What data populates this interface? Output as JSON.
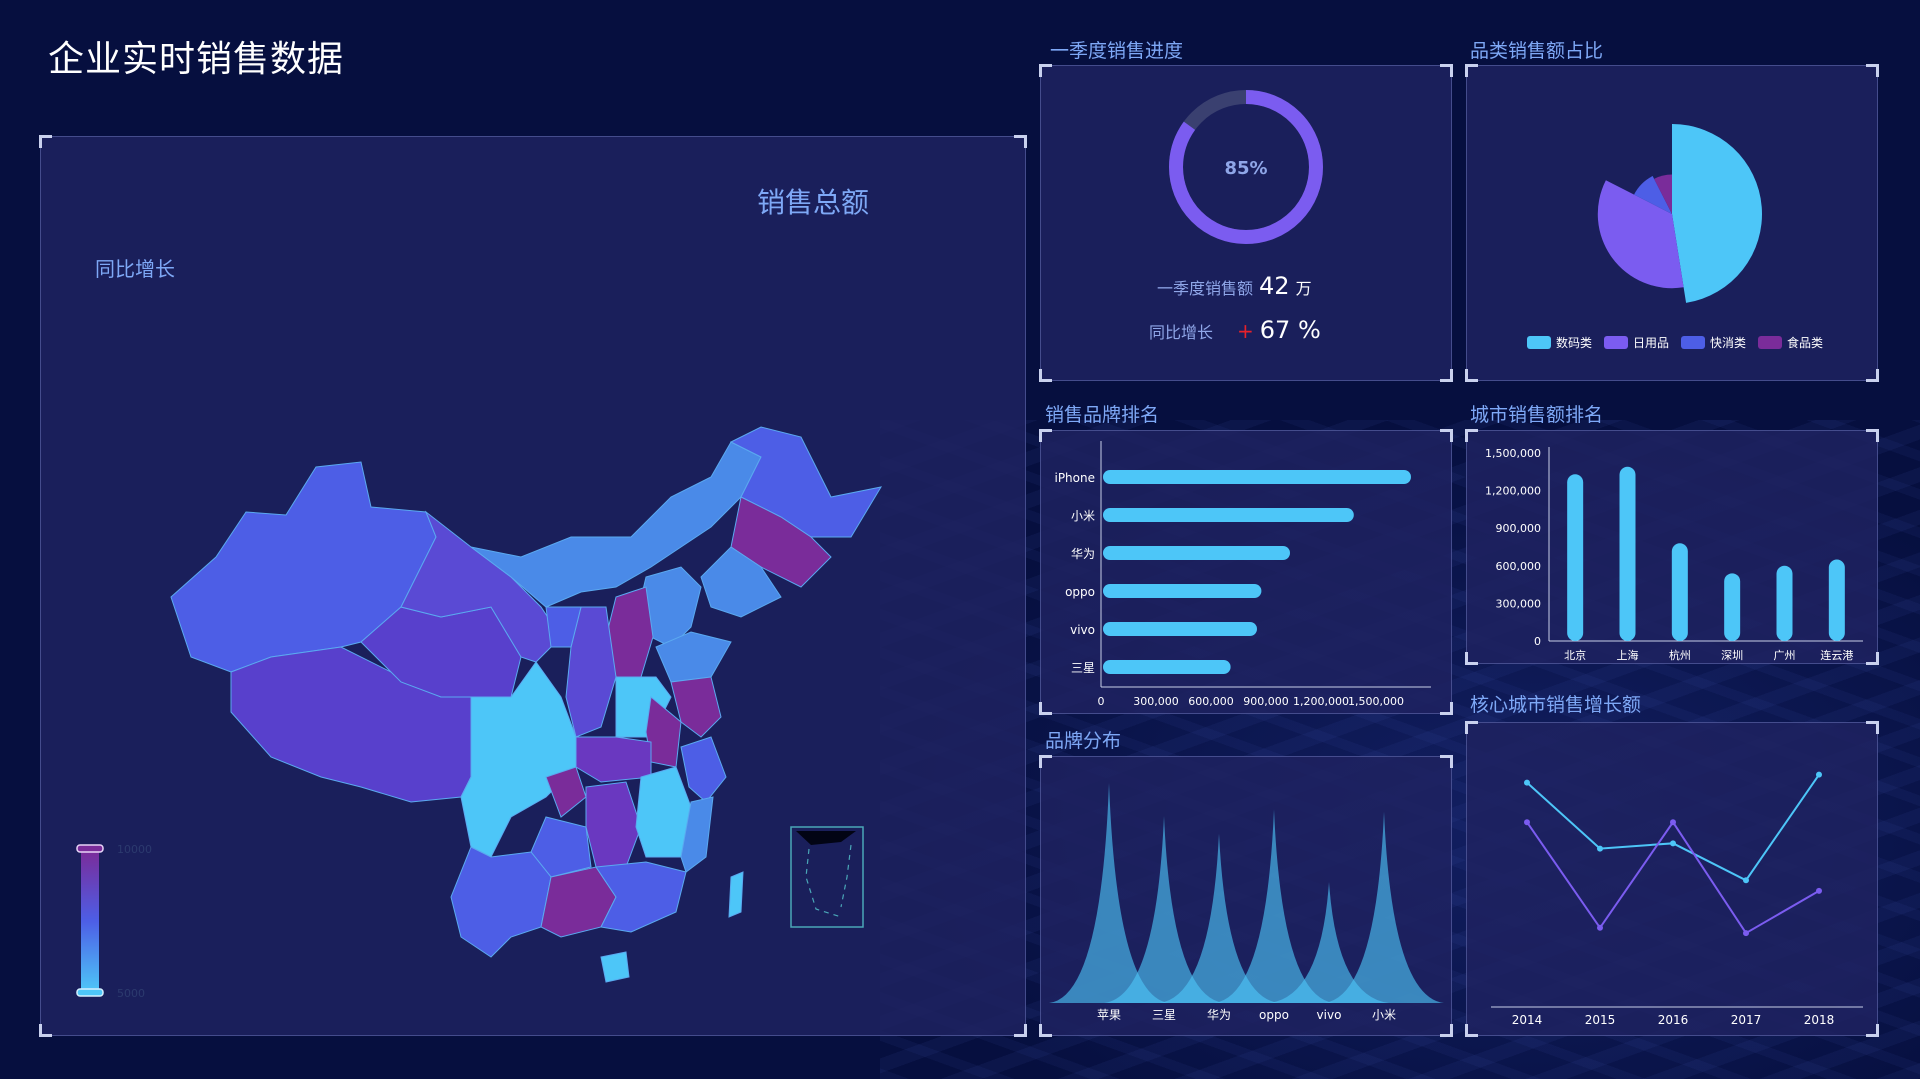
{
  "page": {
    "title": "企业实时销售数据"
  },
  "colors": {
    "cyan": "#4dc6f8",
    "purple": "#7b5cf0",
    "blue": "#4d5ee6",
    "violet": "#7a2c9a",
    "label": "#7ea8f6"
  },
  "map": {
    "title": "销售总额",
    "subtitle": "同比增长",
    "visual_map": {
      "max": "10000",
      "min": "5000"
    }
  },
  "q1": {
    "title": "一季度销售进度",
    "progress_percent": 85,
    "progress_label": "85%",
    "amount_label": "一季度销售额",
    "amount_value": "42",
    "amount_unit": "万",
    "growth_label": "同比增长",
    "growth_sign": "+",
    "growth_value": "67 %"
  },
  "chart_data": [
    {
      "id": "category",
      "type": "pie",
      "title": "品类销售额占比",
      "categories": [
        "数码类",
        "日用品",
        "快消类",
        "食品类"
      ],
      "values": [
        38,
        28,
        8,
        6
      ],
      "colors": [
        "#4dc6f8",
        "#7b5cf0",
        "#4d5ee6",
        "#7a2c9a"
      ],
      "rose": true,
      "legend": "bottom"
    },
    {
      "id": "brand-rank",
      "type": "bar",
      "orientation": "horizontal",
      "title": "销售品牌排名",
      "categories": [
        "iPhone",
        "小米",
        "华为",
        "oppo",
        "vivo",
        "三星"
      ],
      "values": [
        1400000,
        1140000,
        850000,
        720000,
        700000,
        580000
      ],
      "xlim": [
        0,
        1500000
      ],
      "x_ticks": [
        "0",
        "300,000",
        "600,000",
        "900,000",
        "1,200,000",
        "1,500,000"
      ]
    },
    {
      "id": "city-rank",
      "type": "bar",
      "title": "城市销售额排名",
      "categories": [
        "北京",
        "上海",
        "杭州",
        "深圳",
        "广州",
        "连云港"
      ],
      "values": [
        1330000,
        1390000,
        780000,
        540000,
        600000,
        650000
      ],
      "ylim": [
        0,
        1500000
      ],
      "y_ticks": [
        "0",
        "300,000",
        "600,000",
        "900,000",
        "1,200,000",
        "1,500,000"
      ]
    },
    {
      "id": "brand-dist",
      "type": "area",
      "title": "品牌分布",
      "categories": [
        "苹果",
        "三星",
        "华为",
        "oppo",
        "vivo",
        "小米"
      ],
      "values": [
        100,
        85,
        77,
        88,
        55,
        87
      ],
      "ylim": [
        0,
        100
      ]
    },
    {
      "id": "city-growth",
      "type": "line",
      "title": "核心城市销售增长额",
      "categories": [
        "2014",
        "2015",
        "2016",
        "2017",
        "2018"
      ],
      "series": [
        {
          "values": [
            85,
            60,
            62,
            48,
            88
          ],
          "color": "#4dc6f8"
        },
        {
          "values": [
            70,
            30,
            70,
            28,
            44
          ],
          "color": "#7b5cf0"
        }
      ],
      "ylim": [
        0,
        100
      ]
    }
  ]
}
